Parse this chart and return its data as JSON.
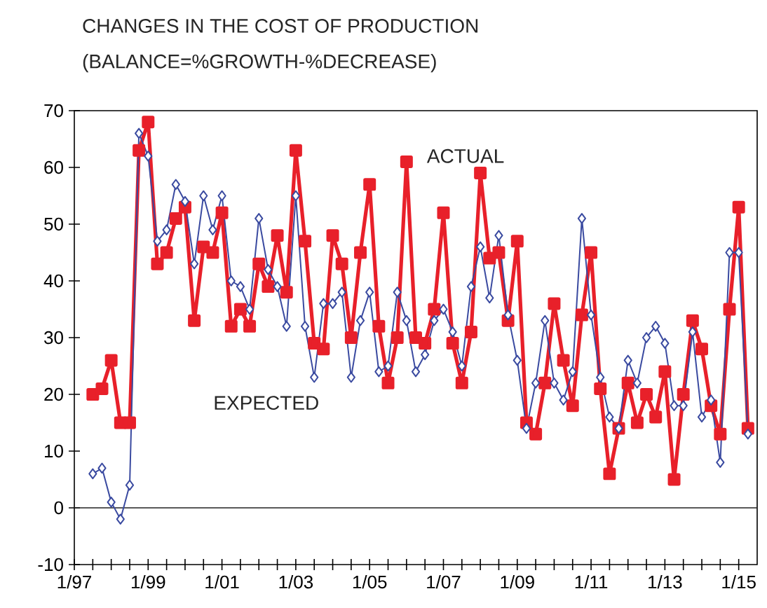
{
  "chart_data": {
    "type": "line",
    "title": "CHANGES IN THE COST OF PRODUCTION",
    "subtitle": "(BALANCE=%GROWTH-%DECREASE)",
    "x": [
      "1997-07",
      "1997-10",
      "1998-01",
      "1998-04",
      "1998-07",
      "1998-10",
      "1999-01",
      "1999-04",
      "1999-07",
      "1999-10",
      "2000-01",
      "2000-04",
      "2000-07",
      "2000-10",
      "2001-01",
      "2001-04",
      "2001-07",
      "2001-10",
      "2002-01",
      "2002-04",
      "2002-07",
      "2002-10",
      "2003-01",
      "2003-04",
      "2003-07",
      "2003-10",
      "2004-01",
      "2004-04",
      "2004-07",
      "2004-10",
      "2005-01",
      "2005-04",
      "2005-07",
      "2005-10",
      "2006-01",
      "2006-04",
      "2006-07",
      "2006-10",
      "2007-01",
      "2007-04",
      "2007-07",
      "2007-10",
      "2008-01",
      "2008-04",
      "2008-07",
      "2008-10",
      "2009-01",
      "2009-04",
      "2009-07",
      "2009-10",
      "2010-01",
      "2010-04",
      "2010-07",
      "2010-10",
      "2011-01",
      "2011-04",
      "2011-07",
      "2011-10",
      "2012-01",
      "2012-04",
      "2012-07",
      "2012-10",
      "2013-01",
      "2013-04",
      "2013-07",
      "2013-10",
      "2014-01",
      "2014-04",
      "2014-07",
      "2014-10",
      "2015-01",
      "2015-04"
    ],
    "series": [
      {
        "name": "ACTUAL",
        "color": "#e8202a",
        "marker": "square",
        "values": [
          20,
          21,
          26,
          15,
          15,
          63,
          68,
          43,
          45,
          51,
          53,
          33,
          46,
          45,
          52,
          32,
          35,
          32,
          43,
          39,
          48,
          38,
          63,
          47,
          29,
          28,
          48,
          43,
          30,
          45,
          57,
          32,
          22,
          30,
          61,
          30,
          29,
          35,
          52,
          29,
          22,
          31,
          59,
          44,
          45,
          33,
          47,
          15,
          13,
          22,
          36,
          26,
          18,
          34,
          45,
          21,
          6,
          14,
          22,
          15,
          20,
          16,
          24,
          5,
          20,
          33,
          28,
          18,
          13,
          35,
          53,
          14
        ]
      },
      {
        "name": "EXPECTED",
        "color": "#3a4aa0",
        "marker": "diamond",
        "values": [
          6,
          7,
          1,
          -2,
          4,
          66,
          62,
          47,
          49,
          57,
          54,
          43,
          55,
          49,
          55,
          40,
          39,
          35,
          51,
          42,
          39,
          32,
          55,
          32,
          23,
          36,
          36,
          38,
          23,
          33,
          38,
          24,
          25,
          38,
          33,
          24,
          27,
          33,
          35,
          31,
          25,
          39,
          46,
          37,
          48,
          34,
          26,
          14,
          22,
          33,
          22,
          19,
          24,
          51,
          34,
          23,
          16,
          14,
          26,
          22,
          30,
          32,
          29,
          18,
          18,
          31,
          16,
          19,
          8,
          45,
          45,
          13
        ]
      }
    ],
    "xlim": [
      "1997-01",
      "2015-07"
    ],
    "xticks": [
      {
        "value": "1997-01",
        "label": "1/97"
      },
      {
        "value": "1999-01",
        "label": "1/99"
      },
      {
        "value": "2001-01",
        "label": "1/01"
      },
      {
        "value": "2003-01",
        "label": "1/03"
      },
      {
        "value": "2005-01",
        "label": "1/05"
      },
      {
        "value": "2007-01",
        "label": "1/07"
      },
      {
        "value": "2009-01",
        "label": "1/09"
      },
      {
        "value": "2011-01",
        "label": "1/11"
      },
      {
        "value": "2013-01",
        "label": "1/13"
      },
      {
        "value": "2015-01",
        "label": "1/15"
      }
    ],
    "ylim": [
      -10,
      70
    ],
    "yticks": [
      -10,
      0,
      10,
      20,
      30,
      40,
      50,
      60,
      70
    ],
    "ref_lines": [
      {
        "axis": "y",
        "value": 0,
        "color": "#222222"
      }
    ],
    "grid": false
  }
}
